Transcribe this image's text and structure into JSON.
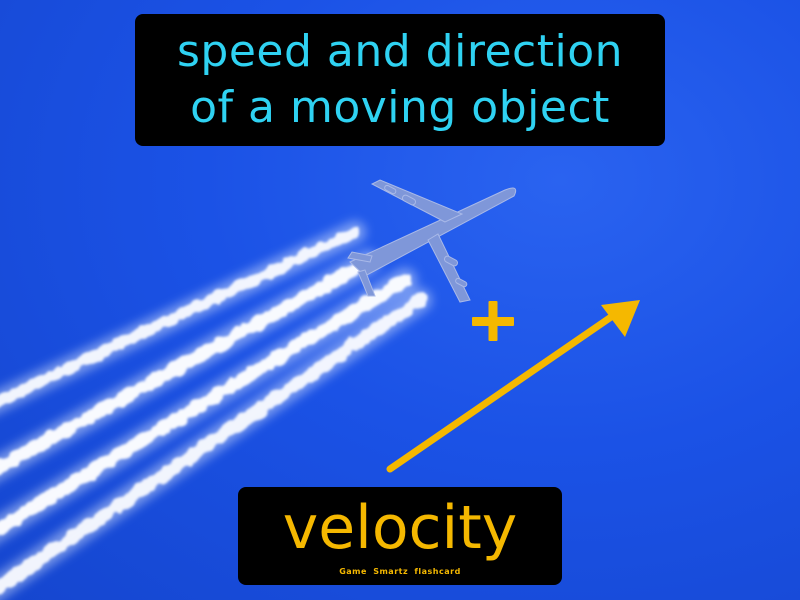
{
  "definition": {
    "line1": "speed and direction",
    "line2": "of a moving object"
  },
  "term": {
    "word": "velocity",
    "brand": "Game Smartz flashcard"
  },
  "symbols": {
    "plus": "plus-sign",
    "arrow": "direction-arrow"
  },
  "colors": {
    "sky": "#1b52e6",
    "definition_text": "#2fd2f2",
    "term_text": "#f5b800",
    "symbol": "#f5b800",
    "box": "#000000"
  }
}
